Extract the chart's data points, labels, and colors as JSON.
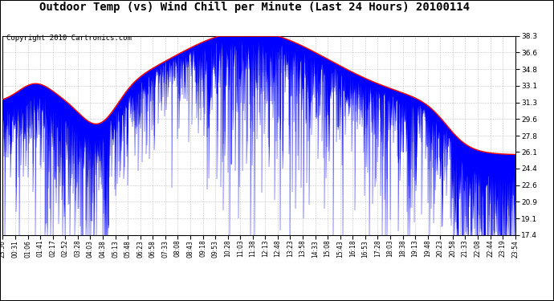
{
  "title": "Outdoor Temp (vs) Wind Chill per Minute (Last 24 Hours) 20100114",
  "copyright": "Copyright 2010 Cartronics.com",
  "yticks": [
    17.4,
    19.1,
    20.9,
    22.6,
    24.4,
    26.1,
    27.8,
    29.6,
    31.3,
    33.1,
    34.8,
    36.6,
    38.3
  ],
  "ymin": 17.4,
  "ymax": 38.3,
  "xtick_labels": [
    "23:56",
    "00:31",
    "01:06",
    "01:41",
    "02:17",
    "02:52",
    "03:28",
    "04:03",
    "04:38",
    "05:13",
    "05:48",
    "06:23",
    "06:58",
    "07:33",
    "08:08",
    "08:43",
    "09:18",
    "09:53",
    "10:28",
    "11:03",
    "11:38",
    "12:13",
    "12:48",
    "13:23",
    "13:58",
    "14:33",
    "15:08",
    "15:43",
    "16:18",
    "16:53",
    "17:28",
    "18:03",
    "18:38",
    "19:13",
    "19:48",
    "20:23",
    "20:58",
    "21:33",
    "22:08",
    "22:44",
    "23:19",
    "23:54"
  ],
  "red_line_color": "#ff0000",
  "blue_bar_color": "#0000ff",
  "background_color": "#ffffff",
  "grid_color": "#aaaaaa",
  "title_fontsize": 10,
  "copyright_fontsize": 6.5
}
